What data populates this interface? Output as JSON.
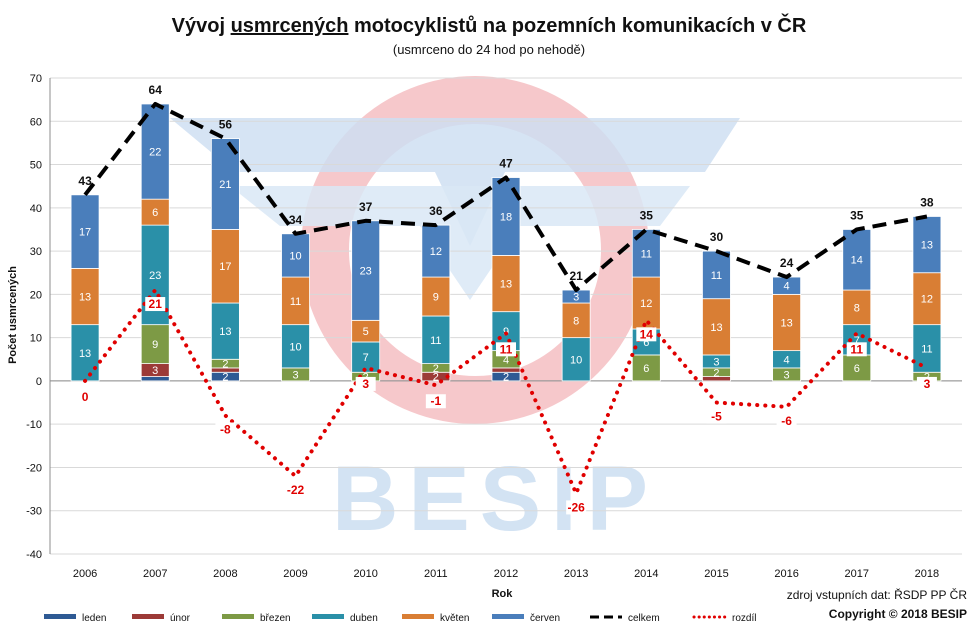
{
  "chart_data": {
    "type": "bar",
    "title_prefix": "Vývoj ",
    "title_underlined": "usmrcených",
    "title_suffix": " motocyklistů na pozemních komunikacích v ČR",
    "subtitle": "(usmrceno do 24 hod po nehodě)",
    "xlabel": "Rok",
    "ylabel": "Počet usmrcených",
    "ylim": [
      -40,
      70
    ],
    "yticks": [
      "-40",
      "-30",
      "-20",
      "-10",
      "0",
      "10",
      "20",
      "30",
      "40",
      "50",
      "60",
      "70"
    ],
    "grid": true,
    "watermark": "BESIP",
    "categories": [
      "2006",
      "2007",
      "2008",
      "2009",
      "2010",
      "2011",
      "2012",
      "2013",
      "2014",
      "2015",
      "2016",
      "2017",
      "2018"
    ],
    "series": [
      {
        "name": "leden",
        "kind": "bar",
        "color": "#2e5a94",
        "values": [
          0,
          1,
          2,
          0,
          0,
          0,
          2,
          0,
          0,
          0,
          0,
          0,
          0
        ]
      },
      {
        "name": "únor",
        "kind": "bar",
        "color": "#9c3a37",
        "values": [
          0,
          3,
          1,
          0,
          0,
          2,
          1,
          0,
          0,
          1,
          0,
          0,
          0
        ]
      },
      {
        "name": "březen",
        "kind": "bar",
        "color": "#7d9a45",
        "values": [
          0,
          9,
          2,
          3,
          2,
          2,
          4,
          0,
          6,
          2,
          3,
          6,
          2
        ]
      },
      {
        "name": "duben",
        "kind": "bar",
        "color": "#2a90a8",
        "values": [
          13,
          23,
          13,
          10,
          7,
          11,
          9,
          10,
          6,
          3,
          4,
          7,
          11
        ]
      },
      {
        "name": "květen",
        "kind": "bar",
        "color": "#d97e34",
        "values": [
          13,
          6,
          17,
          11,
          5,
          9,
          13,
          8,
          12,
          13,
          13,
          8,
          12
        ]
      },
      {
        "name": "červen",
        "kind": "bar",
        "color": "#4a7ebb",
        "values": [
          17,
          22,
          21,
          10,
          23,
          12,
          18,
          3,
          11,
          11,
          4,
          14,
          13
        ]
      },
      {
        "name": "celkem",
        "kind": "line",
        "style": "dashed",
        "color": "#000000",
        "values": [
          43,
          64,
          56,
          34,
          37,
          36,
          47,
          21,
          35,
          30,
          24,
          35,
          38
        ]
      },
      {
        "name": "rozdíl",
        "kind": "line",
        "style": "dotted",
        "color": "#e00000",
        "values": [
          0,
          21,
          -8,
          -22,
          3,
          -1,
          11,
          -26,
          14,
          -5,
          -6,
          11,
          3
        ]
      }
    ],
    "source_note": "zdroj vstupních dat: ŘSDP PP ČR",
    "copyright": "Copyright © 2018  BESIP"
  }
}
